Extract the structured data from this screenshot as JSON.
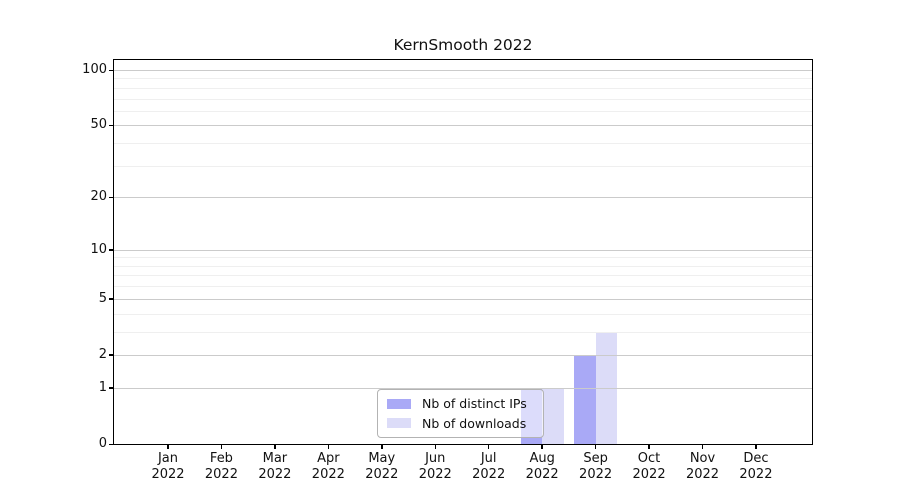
{
  "chart_data": {
    "type": "bar",
    "title": "KernSmooth 2022",
    "categories": [
      {
        "month": "Jan",
        "year": "2022"
      },
      {
        "month": "Feb",
        "year": "2022"
      },
      {
        "month": "Mar",
        "year": "2022"
      },
      {
        "month": "Apr",
        "year": "2022"
      },
      {
        "month": "May",
        "year": "2022"
      },
      {
        "month": "Jun",
        "year": "2022"
      },
      {
        "month": "Jul",
        "year": "2022"
      },
      {
        "month": "Aug",
        "year": "2022"
      },
      {
        "month": "Sep",
        "year": "2022"
      },
      {
        "month": "Oct",
        "year": "2022"
      },
      {
        "month": "Nov",
        "year": "2022"
      },
      {
        "month": "Dec",
        "year": "2022"
      }
    ],
    "series": [
      {
        "name": "Nb of distinct IPs",
        "color": "#a9a9f6",
        "values": [
          0,
          0,
          0,
          0,
          0,
          0,
          0,
          1,
          2,
          0,
          0,
          0
        ]
      },
      {
        "name": "Nb of downloads",
        "color": "#dcdcf8",
        "values": [
          0,
          0,
          0,
          0,
          0,
          0,
          0,
          1,
          3,
          0,
          0,
          0
        ]
      }
    ],
    "y_scale": "log1p",
    "y_ticks": [
      0,
      1,
      2,
      5,
      10,
      20,
      50,
      100
    ],
    "y_minor_ticks": [
      3,
      4,
      6,
      7,
      8,
      9,
      30,
      40,
      60,
      70,
      80,
      90
    ],
    "ylim": [
      0,
      120
    ],
    "grid": {
      "major_color": "#cbcbcb",
      "minor_color": "#efefef"
    },
    "legend_position": "lower center-left inside plot",
    "axis_color": "#000000",
    "text_color": "#111111"
  }
}
